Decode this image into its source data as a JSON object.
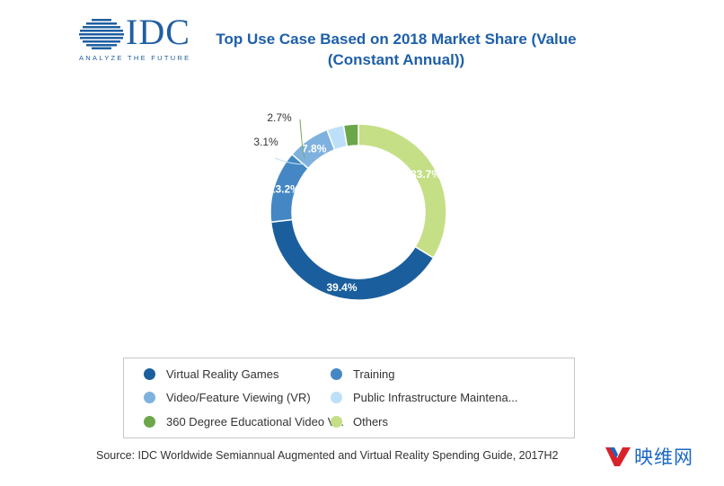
{
  "logo": {
    "name": "IDC",
    "tagline": "ANALYZE THE FUTURE"
  },
  "title": "Top Use Case Based on 2018 Market Share (Value (Constant Annual))",
  "chart_data": {
    "type": "pie",
    "style": "donut",
    "title": "Top Use Case Based on 2018 Market Share (Value (Constant Annual))",
    "unit": "%",
    "start": "12 o'clock",
    "direction": "clockwise",
    "legend_placement": "bottom",
    "slices": [
      {
        "label": "Others",
        "value": 33.7,
        "display": "33.7%",
        "color": "#c5df86",
        "label_color": "#ffffff"
      },
      {
        "label": "Virtual Reality Games",
        "value": 39.4,
        "display": "39.4%",
        "color": "#1b5e9d",
        "label_color": "#ffffff"
      },
      {
        "label": "Training",
        "value": 13.2,
        "display": "13.2%",
        "color": "#4487c4",
        "label_color": "#ffffff"
      },
      {
        "label": "Video/Feature Viewing (VR)",
        "value": 7.8,
        "display": "7.8%",
        "color": "#7fb1de",
        "label_color": "#ffffff"
      },
      {
        "label": "Public Infrastructure Maintena...",
        "value": 3.1,
        "display": "3.1%",
        "color": "#bde0f8",
        "label_color": "#333333"
      },
      {
        "label": "360 Degree Educational Video V...",
        "value": 2.7,
        "display": "2.7%",
        "color": "#6ca64a",
        "label_color": "#333333"
      }
    ]
  },
  "legend": {
    "items": [
      {
        "label": "Virtual Reality Games",
        "color": "#1b5e9d"
      },
      {
        "label": "Training",
        "color": "#4487c4"
      },
      {
        "label": "Video/Feature Viewing (VR)",
        "color": "#7fb1de"
      },
      {
        "label": "Public Infrastructure Maintena...",
        "color": "#bde0f8"
      },
      {
        "label": "360 Degree Educational Video V...",
        "color": "#6ca64a"
      },
      {
        "label": "Others",
        "color": "#c5df86"
      }
    ]
  },
  "source": "Source: IDC Worldwide Semiannual Augmented and Virtual Reality Spending Guide, 2017H2",
  "watermark": {
    "text": "映维网",
    "color": "#1b67c4"
  }
}
